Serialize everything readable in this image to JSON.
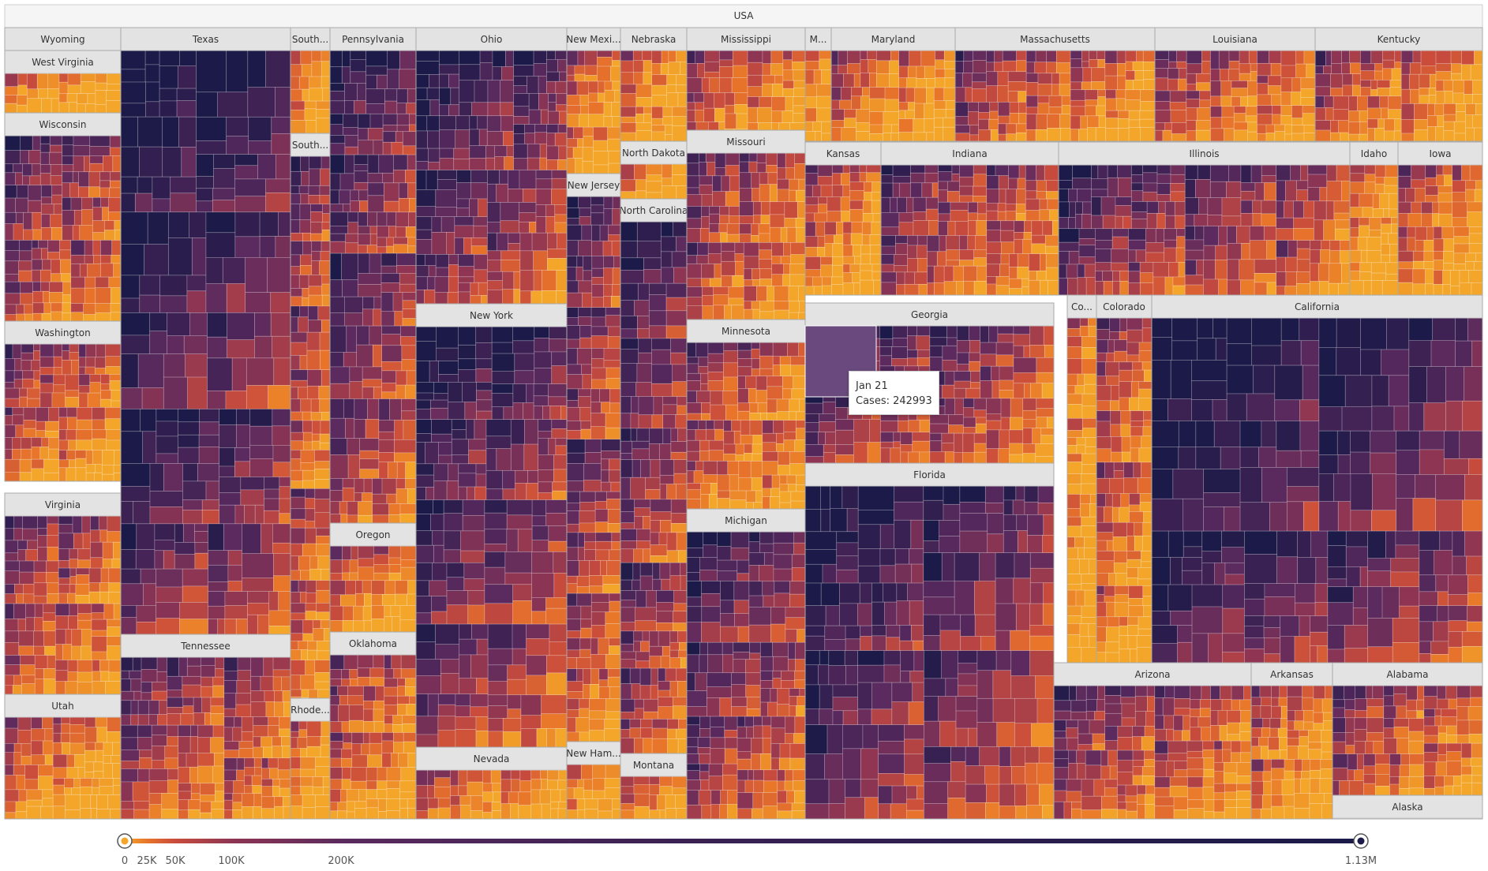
{
  "chart_data": {
    "type": "treemap",
    "root": "USA",
    "value_label": "Cases",
    "color_scale": {
      "min": 0,
      "max": 1130000,
      "ticks": [
        {
          "value": 0,
          "label": "0"
        },
        {
          "value": 25000,
          "label": "25K"
        },
        {
          "value": 50000,
          "label": "50K"
        },
        {
          "value": 100000,
          "label": "100K"
        },
        {
          "value": 200000,
          "label": "200K"
        },
        {
          "value": 1130000,
          "label": "1.13M"
        }
      ],
      "colors": [
        "#f3a629",
        "#e8752a",
        "#c94c3c",
        "#8e3553",
        "#5b2a5e",
        "#3b2153",
        "#1b1a48"
      ]
    },
    "states": [
      {
        "name": "Wyoming",
        "header_label": "Wyoming"
      },
      {
        "name": "West Virginia",
        "header_label": "West Virginia"
      },
      {
        "name": "Wisconsin",
        "header_label": "Wisconsin"
      },
      {
        "name": "Washington",
        "header_label": "Washington"
      },
      {
        "name": "Virginia",
        "header_label": "Virginia"
      },
      {
        "name": "Utah",
        "header_label": "Utah"
      },
      {
        "name": "Texas",
        "header_label": "Texas"
      },
      {
        "name": "Tennessee",
        "header_label": "Tennessee"
      },
      {
        "name": "South Carolina",
        "header_label": "South..."
      },
      {
        "name": "South Dakota",
        "header_label": "South..."
      },
      {
        "name": "Rhode Island",
        "header_label": "Rhode..."
      },
      {
        "name": "Pennsylvania",
        "header_label": "Pennsylvania"
      },
      {
        "name": "Oregon",
        "header_label": "Oregon"
      },
      {
        "name": "Oklahoma",
        "header_label": "Oklahoma"
      },
      {
        "name": "Ohio",
        "header_label": "Ohio"
      },
      {
        "name": "New York",
        "header_label": "New York"
      },
      {
        "name": "Nevada",
        "header_label": "Nevada"
      },
      {
        "name": "New Mexico",
        "header_label": "New Mexi..."
      },
      {
        "name": "New Jersey",
        "header_label": "New Jersey"
      },
      {
        "name": "New Hampshire",
        "header_label": "New Ham..."
      },
      {
        "name": "Nebraska",
        "header_label": "Nebraska"
      },
      {
        "name": "North Dakota",
        "header_label": "North Dakota"
      },
      {
        "name": "North Carolina",
        "header_label": "North Carolina"
      },
      {
        "name": "Montana",
        "header_label": "Montana"
      },
      {
        "name": "Mississippi",
        "header_label": "Mississippi"
      },
      {
        "name": "Missouri",
        "header_label": "Missouri"
      },
      {
        "name": "Minnesota",
        "header_label": "Minnesota"
      },
      {
        "name": "Michigan",
        "header_label": "Michigan"
      },
      {
        "name": "M...",
        "header_label": "M..."
      },
      {
        "name": "Maryland",
        "header_label": "Maryland"
      },
      {
        "name": "Massachusetts",
        "header_label": "Massachusetts"
      },
      {
        "name": "Louisiana",
        "header_label": "Louisiana"
      },
      {
        "name": "Kentucky",
        "header_label": "Kentucky"
      },
      {
        "name": "Kansas",
        "header_label": "Kansas"
      },
      {
        "name": "Indiana",
        "header_label": "Indiana"
      },
      {
        "name": "Illinois",
        "header_label": "Illinois"
      },
      {
        "name": "Idaho",
        "header_label": "Idaho"
      },
      {
        "name": "Iowa",
        "header_label": "Iowa"
      },
      {
        "name": "Georgia",
        "header_label": "Georgia"
      },
      {
        "name": "Florida",
        "header_label": "Florida"
      },
      {
        "name": "Connecticut",
        "header_label": "Co..."
      },
      {
        "name": "Colorado",
        "header_label": "Colorado"
      },
      {
        "name": "California",
        "header_label": "California"
      },
      {
        "name": "Arizona",
        "header_label": "Arizona"
      },
      {
        "name": "Arkansas",
        "header_label": "Arkansas"
      },
      {
        "name": "Alabama",
        "header_label": "Alabama"
      },
      {
        "name": "Alaska",
        "header_label": "Alaska"
      }
    ],
    "tooltip": {
      "state": "Georgia",
      "date": "Jan 21",
      "label": "Cases: 242993",
      "value": 242993
    }
  }
}
